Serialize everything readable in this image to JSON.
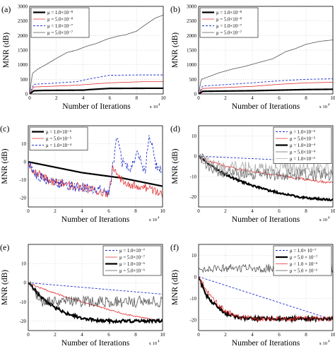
{
  "figure": {
    "xlabel": "Number of Iterations",
    "ylabel": "MNR (dB)"
  },
  "chart_data": [
    {
      "panel_label": "(a)",
      "type": "line",
      "xlabel": "Number of Iterations",
      "ylabel": "MNR (dB)",
      "x_multiplier": "x 10",
      "xlim": [
        0,
        10
      ],
      "ylim": [
        0,
        3000
      ],
      "xticks": [
        "0",
        "2",
        "4",
        "6",
        "8",
        "10"
      ],
      "yticks": [
        "0",
        "500",
        "1000",
        "1500",
        "2000",
        "2500",
        "3000"
      ],
      "grid": true,
      "legend_position": "top-left",
      "series": [
        {
          "name": "μ = 1.0×10⁻⁸",
          "style": "thick",
          "color": "#000000",
          "noise": 0,
          "x": [
            0,
            0.3,
            1.0,
            2.5,
            4.0,
            4.5,
            6.0,
            9.0,
            10
          ],
          "y": [
            0,
            110,
            120,
            125,
            130,
            150,
            190,
            195,
            195
          ]
        },
        {
          "name": "μ = 5.0×10⁻⁸",
          "style": "thin",
          "color": "#e03030",
          "noise": 0,
          "x": [
            0,
            0.3,
            1.5,
            3.5,
            6.0,
            8.5,
            10
          ],
          "y": [
            0,
            240,
            260,
            300,
            380,
            420,
            420
          ]
        },
        {
          "name": "μ = 1.0×10⁻⁷",
          "style": "dashed",
          "color": "#2233cc",
          "noise": 0,
          "x": [
            0,
            0.3,
            1.5,
            3.5,
            4.5,
            6.0,
            8.0,
            10
          ],
          "y": [
            0,
            330,
            360,
            420,
            520,
            640,
            650,
            650
          ]
        },
        {
          "name": "μ = 5.0×10⁻⁷",
          "style": "gray",
          "color": "#555555",
          "noise": 0,
          "x": [
            0,
            0.2,
            0.6,
            1.2,
            2.0,
            2.8,
            3.5,
            4.3,
            5.0,
            5.8,
            6.6,
            7.2,
            8.0,
            8.6,
            9.4,
            10
          ],
          "y": [
            0,
            700,
            850,
            1000,
            1220,
            1420,
            1500,
            1640,
            1730,
            1880,
            1980,
            2030,
            2150,
            2350,
            2600,
            2700
          ]
        }
      ]
    },
    {
      "panel_label": "(b)",
      "type": "line",
      "xlabel": "Number of Iterations",
      "ylabel": "MNR (dB)",
      "x_multiplier": "x 10",
      "xlim": [
        0,
        10
      ],
      "ylim": [
        0,
        3000
      ],
      "xticks": [
        "0",
        "2",
        "4",
        "6",
        "8",
        "10"
      ],
      "yticks": [
        "0",
        "500",
        "1000",
        "1500",
        "2000",
        "2500",
        "3000"
      ],
      "grid": true,
      "legend_position": "top-left",
      "series": [
        {
          "name": "μ = 1.0×10⁻⁸",
          "style": "thick",
          "color": "#000000",
          "noise": 0,
          "x": [
            0,
            0.3,
            2.0,
            4.0,
            6.0,
            8.0,
            10
          ],
          "y": [
            0,
            90,
            100,
            110,
            130,
            150,
            160
          ]
        },
        {
          "name": "μ = 5.0×10⁻⁸",
          "style": "thin",
          "color": "#e03030",
          "noise": 0,
          "x": [
            0,
            0.3,
            2.0,
            4.0,
            6.0,
            8.0,
            10
          ],
          "y": [
            0,
            190,
            220,
            260,
            330,
            380,
            400
          ]
        },
        {
          "name": "μ = 1.0×10⁻⁷",
          "style": "dashed",
          "color": "#2233cc",
          "noise": 0,
          "x": [
            0,
            0.3,
            2.0,
            4.0,
            6.0,
            8.0,
            10
          ],
          "y": [
            0,
            270,
            320,
            380,
            450,
            500,
            520
          ]
        },
        {
          "name": "μ = 5.0×10⁻⁷",
          "style": "gray",
          "color": "#555555",
          "noise": 0,
          "x": [
            0,
            0.2,
            0.8,
            1.5,
            2.5,
            3.5,
            4.5,
            5.5,
            6.5,
            7.2,
            8.0,
            9.0,
            10
          ],
          "y": [
            0,
            500,
            600,
            720,
            850,
            950,
            1080,
            1200,
            1450,
            1550,
            1700,
            1800,
            1850
          ]
        }
      ]
    },
    {
      "panel_label": "(c)",
      "type": "line",
      "xlabel": "Number of Iterations",
      "ylabel": "MNR (dB)",
      "x_multiplier": "x 10",
      "xlim": [
        0,
        10
      ],
      "ylim": [
        -25,
        20
      ],
      "xticks": [
        "0",
        "2",
        "4",
        "6",
        "8",
        "10"
      ],
      "yticks": [
        "-20",
        "-10",
        "0",
        "10"
      ],
      "grid": true,
      "legend_position": "top-left",
      "series": [
        {
          "name": "μ = 1.0×10⁻⁵",
          "style": "thick",
          "color": "#000000",
          "noise": 0,
          "x": [
            0,
            1,
            2,
            3,
            4,
            5,
            6,
            7,
            8,
            9,
            10
          ],
          "y": [
            0,
            -1.5,
            -3,
            -4.5,
            -6,
            -7,
            -8,
            -9,
            -10.5,
            -12,
            -13.5
          ]
        },
        {
          "name": "μ = 5.0×10⁻⁵",
          "style": "thin",
          "color": "#e03030",
          "noise": 2.5,
          "x": [
            0,
            0.5,
            1.5,
            3,
            4.5,
            5.5,
            6.0,
            6.3,
            6.7,
            7.5,
            8.5,
            9.5,
            10
          ],
          "y": [
            0,
            -6,
            -10,
            -13,
            -15,
            -17,
            -19,
            -3,
            -8,
            -12,
            -14,
            -16,
            -18
          ]
        },
        {
          "name": "μ = 1.0×10⁻⁴",
          "style": "dashed",
          "color": "#2233cc",
          "noise": 3,
          "x": [
            0,
            0.5,
            1.5,
            3,
            4.5,
            5.5,
            6.0,
            6.3,
            6.6,
            7.0,
            7.6,
            8.2,
            8.7,
            9.0,
            9.5,
            10
          ],
          "y": [
            0,
            -7,
            -11,
            -13,
            -15,
            -16,
            -18,
            -2,
            14,
            0,
            -4,
            5,
            -6,
            16,
            -2,
            -6
          ]
        }
      ]
    },
    {
      "panel_label": "(d)",
      "type": "line",
      "xlabel": "Number of Iterations",
      "ylabel": "MNR (dB)",
      "x_multiplier": "x 10",
      "xlim": [
        0,
        10
      ],
      "ylim": [
        -25,
        15
      ],
      "xticks": [
        "0",
        "2",
        "4",
        "6",
        "8",
        "10"
      ],
      "yticks": [
        "-20",
        "-10",
        "0",
        "10"
      ],
      "grid": true,
      "legend_position": "top-right",
      "series": [
        {
          "name": "μ = 1.0×10⁻⁵",
          "style": "dashed",
          "color": "#2233cc",
          "noise": 0,
          "x": [
            0,
            2,
            4,
            6,
            8,
            10
          ],
          "y": [
            0,
            -0.6,
            -1.2,
            -1.8,
            -2.4,
            -3
          ]
        },
        {
          "name": "μ = 5.0×10⁻⁵",
          "style": "thin",
          "color": "#e03030",
          "noise": 0.6,
          "x": [
            0,
            1,
            2,
            3,
            4,
            5,
            6,
            7,
            8,
            9,
            10
          ],
          "y": [
            0,
            -3,
            -5,
            -6.5,
            -7.5,
            -8.5,
            -9.5,
            -10.5,
            -11.5,
            -12.5,
            -13
          ]
        },
        {
          "name": "μ = 1.0×10⁻⁴",
          "style": "thick",
          "color": "#000000",
          "noise": 0.5,
          "x": [
            0,
            1,
            2,
            3,
            4,
            5,
            6,
            7,
            8,
            9,
            10
          ],
          "y": [
            0,
            -5,
            -9,
            -12,
            -14.5,
            -16.5,
            -18,
            -19.5,
            -20.5,
            -21,
            -21.5
          ]
        },
        {
          "name": "μ = 5.0×10⁻⁴",
          "style": "gray",
          "color": "#666666",
          "noise": 3,
          "x": [
            0,
            1,
            2,
            4,
            6,
            8,
            10
          ],
          "y": [
            0,
            -6,
            -8,
            -9,
            -9,
            -9,
            -9
          ]
        },
        {
          "name": "μ = 1.0×10⁻³",
          "style": "lightgray",
          "color": "#aaaaaa",
          "noise": 3.5,
          "x": [
            0,
            1,
            2,
            4,
            6,
            8,
            10
          ],
          "y": [
            0,
            -4,
            -6,
            -6,
            -6,
            -6,
            -6
          ]
        }
      ]
    },
    {
      "panel_label": "(e)",
      "type": "line",
      "xlabel": "Number of Iterations",
      "ylabel": "MNR (dB)",
      "x_multiplier": "x 10",
      "xlim": [
        0,
        10
      ],
      "ylim": [
        -25,
        20
      ],
      "xticks": [
        "0",
        "2",
        "4",
        "6",
        "8",
        "10"
      ],
      "yticks": [
        "-20",
        "-10",
        "0",
        "10"
      ],
      "grid": true,
      "legend_position": "top-right",
      "series": [
        {
          "name": "μ = 1.0×10⁻⁷",
          "style": "dashed",
          "color": "#2233cc",
          "noise": 0,
          "x": [
            0,
            2,
            4,
            6,
            8,
            10
          ],
          "y": [
            0,
            -1.2,
            -2.4,
            -3.6,
            -4.8,
            -6
          ]
        },
        {
          "name": "μ = 5.0×10⁻⁷",
          "style": "thin",
          "color": "#e03030",
          "noise": 0.4,
          "x": [
            0,
            1,
            2,
            3,
            4,
            5,
            6,
            7,
            8,
            9,
            10
          ],
          "y": [
            0,
            -3,
            -5.5,
            -8,
            -10,
            -12,
            -14,
            -16,
            -17.5,
            -19,
            -20.5
          ]
        },
        {
          "name": "μ = 1.0×10⁻⁶",
          "style": "thick",
          "color": "#000000",
          "noise": 0.8,
          "x": [
            0,
            1,
            2,
            3,
            4,
            5,
            6,
            8,
            10
          ],
          "y": [
            0,
            -8,
            -13,
            -16.5,
            -18.5,
            -19.5,
            -20,
            -20,
            -20
          ]
        },
        {
          "name": "μ = 5.0×10⁻⁶",
          "style": "gray",
          "color": "#555555",
          "noise": 3,
          "x": [
            0,
            0.5,
            1,
            2,
            4,
            6,
            8,
            10
          ],
          "y": [
            0,
            -6,
            -10,
            -10,
            -10,
            -10,
            -10,
            -10
          ]
        }
      ]
    },
    {
      "panel_label": "(f)",
      "type": "line",
      "xlabel": "Number of Iterations",
      "ylabel": "MNR (dB)",
      "x_multiplier": "x 10",
      "xlim": [
        0,
        10
      ],
      "ylim": [
        -25,
        15
      ],
      "xticks": [
        "0",
        "2",
        "4",
        "6",
        "8",
        "10"
      ],
      "yticks": [
        "-20",
        "-10",
        "0",
        "10"
      ],
      "grid": true,
      "legend_position": "top-right",
      "series": [
        {
          "name": "μ = 1.0× 10⁻⁷",
          "style": "dashed",
          "color": "#2233cc",
          "noise": 0,
          "x": [
            0,
            2,
            4,
            6,
            8,
            10
          ],
          "y": [
            0,
            -4,
            -8,
            -12,
            -16,
            -20
          ]
        },
        {
          "name": "μ = 5.0 × 10⁻⁷",
          "style": "thick",
          "color": "#000000",
          "noise": 0.8,
          "x": [
            0,
            0.5,
            1,
            2,
            3,
            4,
            6,
            8,
            10
          ],
          "y": [
            0,
            -8,
            -12,
            -17,
            -19,
            -19.5,
            -19.5,
            -19.5,
            -19.5
          ]
        },
        {
          "name": "μ = 1.0 × 10⁻⁶",
          "style": "thin",
          "color": "#e03030",
          "noise": 1.2,
          "x": [
            0,
            1,
            2,
            3,
            4,
            6,
            8,
            10
          ],
          "y": [
            0,
            -10,
            -16,
            -18.5,
            -19.5,
            -19.5,
            -19.5,
            -19.5
          ]
        },
        {
          "name": "μ = 5.0 × 10⁻⁶",
          "style": "gray",
          "color": "#555555",
          "noise": 2,
          "x": [
            0,
            0.2,
            2,
            4,
            6,
            8,
            10
          ],
          "y": [
            4,
            4,
            4,
            4,
            4,
            4,
            4
          ]
        }
      ]
    }
  ]
}
